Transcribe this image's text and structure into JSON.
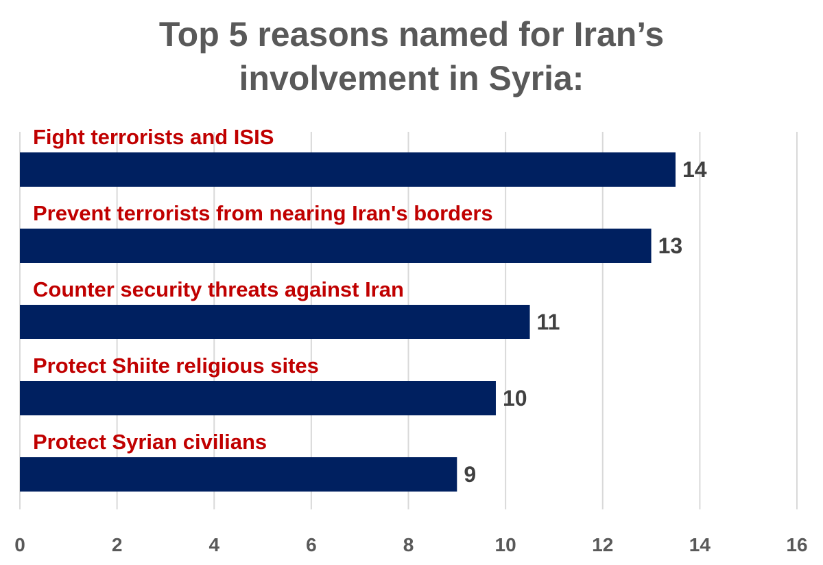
{
  "chart_data": {
    "type": "bar",
    "orientation": "horizontal",
    "title_lines": [
      "Top 5 reasons named for Iran’s",
      "involvement in Syria:"
    ],
    "categories": [
      "Fight terrorists and ISIS",
      "Prevent terrorists from nearing Iran's borders",
      "Counter security threats against Iran",
      "Protect Shiite religious sites",
      "Protect Syrian civilians"
    ],
    "values": [
      13.5,
      13,
      10.5,
      9.8,
      9
    ],
    "value_labels": [
      "14",
      "13",
      "11",
      "10",
      "9"
    ],
    "xlim": [
      0,
      16
    ],
    "xticks": [
      0,
      2,
      4,
      6,
      8,
      10,
      12,
      14,
      16
    ],
    "grid": "vertical",
    "legend": "none",
    "colors": {
      "bar": "#002060",
      "category_label": "#c00000",
      "value_label": "#404040",
      "title": "#595959",
      "gridline": "#d9d9d9",
      "tick_label": "#595959"
    }
  }
}
